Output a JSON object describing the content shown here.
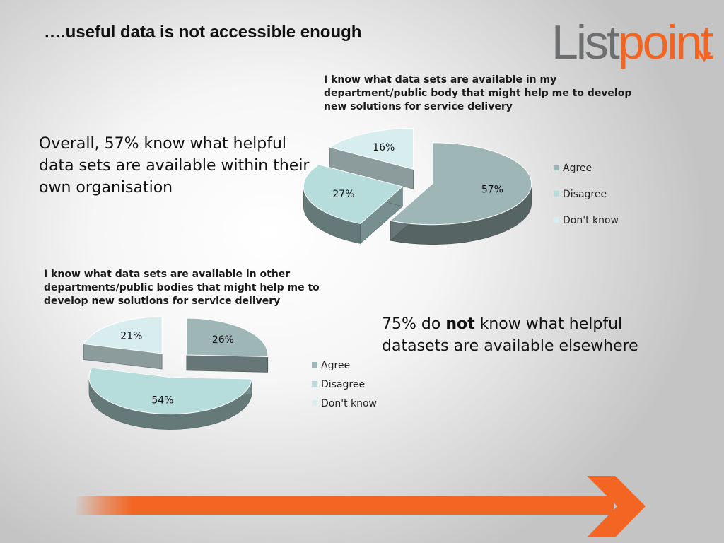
{
  "slide": {
    "title": "….useful data is not accessible enough",
    "logo": {
      "part1": "List",
      "part2": "point"
    },
    "callout1": "Overall, 57% know what helpful data sets are available within their own organisation",
    "callout2": {
      "pre": "75% do ",
      "bold": "not",
      "post": " know what helpful datasets are available elsewhere"
    }
  },
  "colors": {
    "agree": "#9fb6b6",
    "disagree": "#b7dcdc",
    "dont_know": "#d8eeee",
    "accent": "#f26522",
    "logo_gray": "#6d6e70"
  },
  "chart_data": [
    {
      "type": "pie",
      "title": "I know what data sets are available in my department/public body that might help me to develop new solutions for service delivery",
      "categories": [
        "Agree",
        "Disagree",
        "Don't know"
      ],
      "values": [
        57,
        27,
        16
      ],
      "data_labels": [
        "57%",
        "27%",
        "16%"
      ],
      "legend": "right"
    },
    {
      "type": "pie",
      "title": "I know what data sets are available in other departments/public bodies that might help me to develop new solutions for service delivery",
      "categories": [
        "Agree",
        "Disagree",
        "Don't know"
      ],
      "values": [
        26,
        54,
        21
      ],
      "data_labels": [
        "26%",
        "54%",
        "21%"
      ],
      "legend": "right"
    }
  ]
}
